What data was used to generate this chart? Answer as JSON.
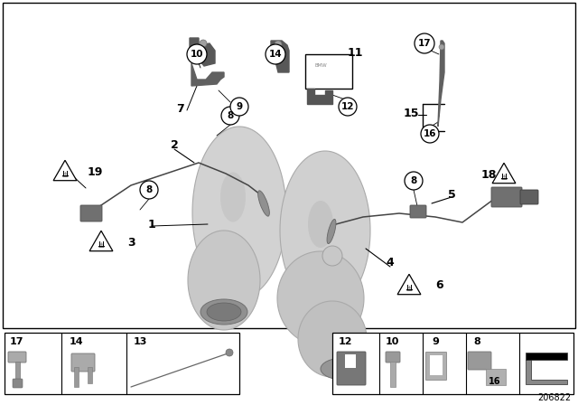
{
  "bg_color": "#ffffff",
  "diagram_number": "206822",
  "pipe_color": "#d4d4d4",
  "pipe_edge": "#aaaaaa",
  "pipe_dark": "#b8b8b8",
  "pipe_opening": "#8a8a8a",
  "bracket_dark": "#555555",
  "bracket_mid": "#777777",
  "wire_color": "#444444",
  "sensor_color": "#888888",
  "connector_color": "#666666"
}
